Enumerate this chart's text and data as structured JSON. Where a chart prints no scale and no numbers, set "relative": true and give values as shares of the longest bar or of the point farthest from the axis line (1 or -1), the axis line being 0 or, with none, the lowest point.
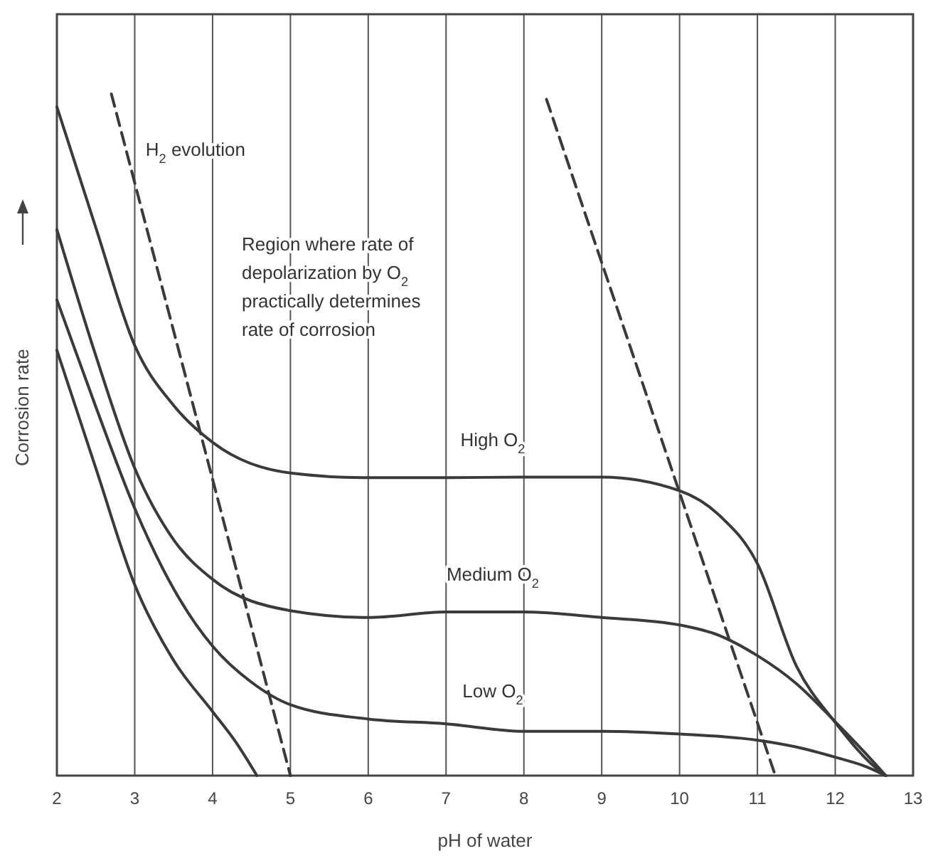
{
  "chart_data": {
    "type": "line",
    "xlabel": "pH of water",
    "ylabel": "Corrosion rate",
    "relative": true,
    "xlim": [
      2,
      13
    ],
    "xticks": [
      2,
      3,
      4,
      5,
      6,
      7,
      8,
      9,
      10,
      11,
      12,
      13
    ],
    "grid": "x",
    "tick_labels": "x",
    "line_style": "solid",
    "series": [
      {
        "name": "High O$_{2}$",
        "color": "#3a3a3a",
        "x": [
          2,
          2.5,
          3,
          3.5,
          4,
          5,
          6,
          7,
          8,
          9,
          10,
          10.5,
          11,
          11.5,
          12,
          12.6,
          12.65
        ],
        "values": [
          0.981,
          0.804,
          0.631,
          0.543,
          0.489,
          0.444,
          0.437,
          0.437,
          0.438,
          0.438,
          0.418,
          0.383,
          0.311,
          0.161,
          0.078,
          0.004,
          0
        ]
      },
      {
        "name": "Medium O$_{2}$",
        "color": "#3a3a3a",
        "x": [
          2,
          2.5,
          3,
          3.5,
          4,
          5,
          6,
          7,
          8,
          9,
          10,
          10.5,
          11,
          11.5,
          12,
          12.5,
          12.65
        ],
        "values": [
          0.801,
          0.616,
          0.451,
          0.346,
          0.288,
          0.242,
          0.232,
          0.24,
          0.24,
          0.232,
          0.221,
          0.206,
          0.176,
          0.135,
          0.079,
          0.019,
          0
        ]
      },
      {
        "name": "Low O$_{2}$",
        "color": "#3a3a3a",
        "x": [
          2,
          2.5,
          3,
          3.5,
          4,
          4.5,
          5,
          6,
          7,
          8,
          9,
          10,
          11,
          11.5,
          12,
          12.4,
          12.65
        ],
        "values": [
          0.698,
          0.541,
          0.392,
          0.274,
          0.19,
          0.137,
          0.104,
          0.083,
          0.076,
          0.065,
          0.065,
          0.061,
          0.052,
          0.042,
          0.027,
          0.013,
          0
        ]
      },
      {
        "color": "#3a3a3a",
        "x": [
          2,
          2.5,
          3,
          3.5,
          4,
          4.3,
          4.57
        ],
        "values": [
          0.624,
          0.451,
          0.28,
          0.169,
          0.094,
          0.049,
          0
        ]
      },
      {
        "name": "H$_{2}$ evolution",
        "color": "#3a3a3a",
        "line_style": "dashed",
        "x": [
          2.7,
          5.0
        ],
        "values": [
          1,
          0
        ]
      },
      {
        "color": "#3a3a3a",
        "line_style": "dashed",
        "x": [
          8.29,
          11.23
        ],
        "values": [
          0.992,
          0
        ]
      }
    ],
    "annotations": [
      "Region where rate of\ndepolarization by O$_{2}$\npractically determines\nrate of corrosion"
    ]
  }
}
